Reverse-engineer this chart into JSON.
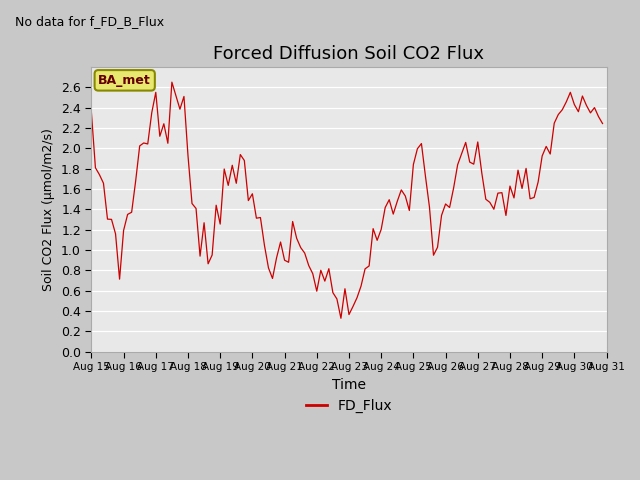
{
  "title": "Forced Diffusion Soil CO2 Flux",
  "xlabel": "Time",
  "ylabel": "Soil CO2 Flux (μmol/m2/s)",
  "no_data_label": "No data for f_FD_B_Flux",
  "legend_label": "FD_Flux",
  "line_color": "#cc0000",
  "fig_bg_color": "#c8c8c8",
  "ax_bg_color": "#e8e8e8",
  "ylim": [
    0.0,
    2.8
  ],
  "yticks": [
    0.0,
    0.2,
    0.4,
    0.6,
    0.8,
    1.0,
    1.2,
    1.4,
    1.6,
    1.8,
    2.0,
    2.2,
    2.4,
    2.6
  ],
  "bbox_label": "BA_met",
  "bbox_facecolor": "#e8e870",
  "bbox_edgecolor": "#888800",
  "n_days": 16,
  "seed": 7
}
